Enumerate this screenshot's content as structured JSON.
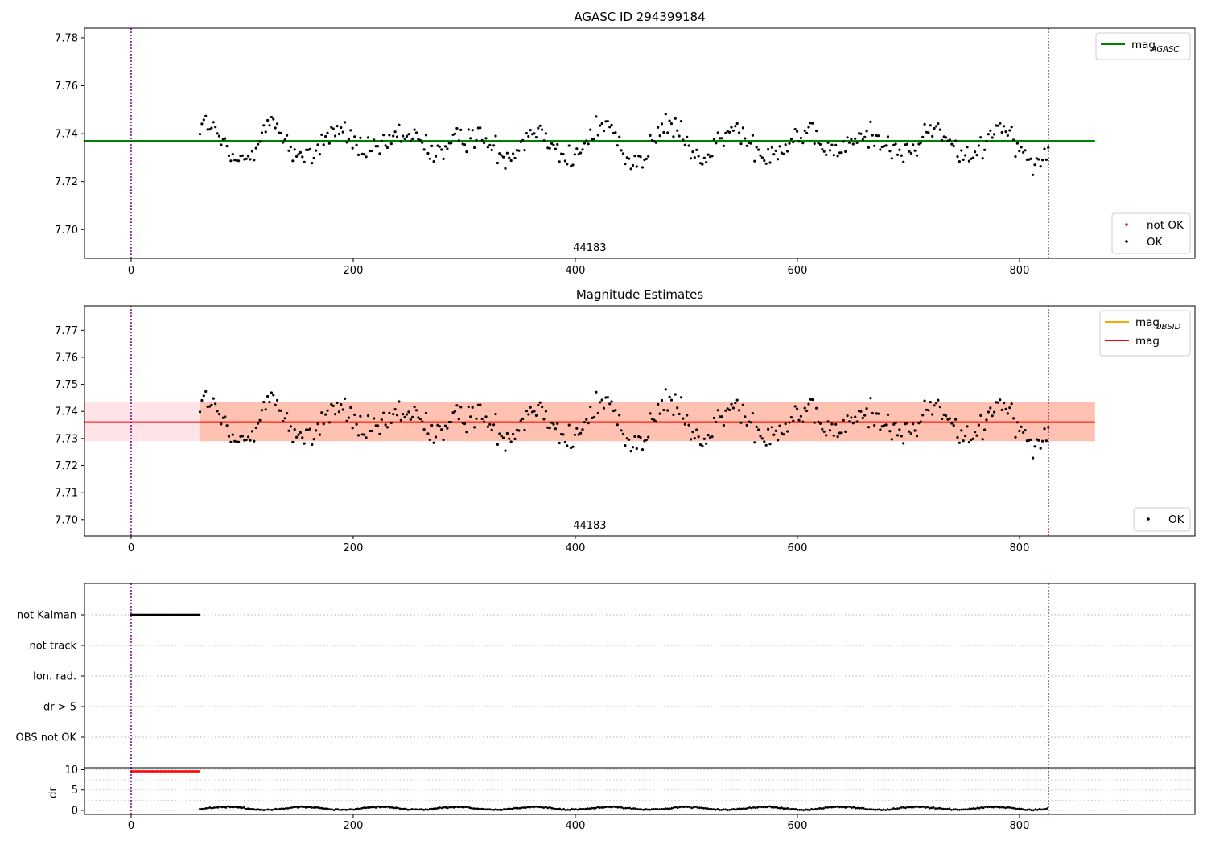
{
  "chart_data": [
    {
      "type": "scatter",
      "title": "AGASC ID 294399184",
      "xlim": [
        -42,
        958
      ],
      "ylim": [
        7.688,
        7.784
      ],
      "x_ticks": [
        0,
        200,
        400,
        600,
        800
      ],
      "y_ticks": [
        7.7,
        7.72,
        7.74,
        7.76,
        7.78
      ],
      "y_tick_labels": [
        "7.70",
        "7.72",
        "7.74",
        "7.76",
        "7.78"
      ],
      "vlines": [
        0,
        826
      ],
      "annotation": "44183",
      "lines": [
        {
          "name": "mag_AGASC",
          "label_main": "mag",
          "label_sub": "AGASC",
          "y": 7.737,
          "x_range": [
            -42,
            868
          ],
          "color": "#008000"
        }
      ],
      "series": [
        {
          "name": "not OK",
          "color": "#ff0000",
          "points": []
        },
        {
          "name": "OK",
          "color": "#000000",
          "x_range": [
            62,
            826
          ],
          "count": 440,
          "mean": 7.736,
          "amplitude": 0.008,
          "noise": 0.0045,
          "min": 7.718,
          "max": 7.755
        }
      ],
      "legend": {
        "upper_right": [
          "mag_AGASC"
        ],
        "lower_right": [
          "not OK",
          "OK"
        ]
      }
    },
    {
      "type": "scatter",
      "title": "Magnitude Estimates",
      "xlim": [
        -42,
        958
      ],
      "ylim": [
        7.694,
        7.779
      ],
      "x_ticks": [
        0,
        200,
        400,
        600,
        800
      ],
      "y_ticks": [
        7.7,
        7.71,
        7.72,
        7.73,
        7.74,
        7.75,
        7.76,
        7.77
      ],
      "y_tick_labels": [
        "7.70",
        "7.71",
        "7.72",
        "7.73",
        "7.74",
        "7.75",
        "7.76",
        "7.77"
      ],
      "vlines": [
        0,
        826
      ],
      "annotation": "44183",
      "lines": [
        {
          "name": "mag_OBSID",
          "label_main": "mag",
          "label_sub": "OBSID",
          "y": 7.736,
          "x_range": [
            62,
            826
          ],
          "color": "#ffa500"
        },
        {
          "name": "mag",
          "label_main": "mag",
          "label_sub": "",
          "y": 7.736,
          "x_range": [
            -42,
            868
          ],
          "color": "#ff0000"
        }
      ],
      "bands": [
        {
          "x_range": [
            -42,
            868
          ],
          "y_range": [
            7.729,
            7.7435
          ],
          "color": "#ffc0cb"
        },
        {
          "x_range": [
            62,
            868
          ],
          "y_range": [
            7.729,
            7.7435
          ],
          "color": "#ffa07a"
        }
      ],
      "series": [
        {
          "name": "OK",
          "color": "#000000",
          "x_range": [
            62,
            826
          ],
          "count": 440,
          "mean": 7.736,
          "amplitude": 0.008,
          "noise": 0.0045,
          "min": 7.718,
          "max": 7.755
        }
      ],
      "legend": {
        "upper_right": [
          "mag_OBSID",
          "mag"
        ],
        "lower_right": [
          "OK"
        ]
      }
    },
    {
      "type": "scatter",
      "title": "",
      "xlim": [
        -42,
        958
      ],
      "categories": [
        "not Kalman",
        "not track",
        "Ion. rad.",
        "dr > 5",
        "OBS not OK"
      ],
      "vlines": [
        0,
        826
      ],
      "flags": [
        {
          "category": "not Kalman",
          "x_range": [
            0,
            62
          ],
          "color": "#000000"
        }
      ]
    },
    {
      "type": "scatter",
      "title": "",
      "xlim": [
        -42,
        958
      ],
      "ylim": [
        -1,
        10.5
      ],
      "x_ticks": [
        0,
        200,
        400,
        600,
        800
      ],
      "y_ticks": [
        0,
        5,
        10
      ],
      "y_tick_labels": [
        "0",
        "5",
        "10"
      ],
      "ylabel": "dr",
      "vlines": [
        0,
        826
      ],
      "series": [
        {
          "name": "dr (not Kalman)",
          "color": "#ff0000",
          "x_range": [
            0,
            62
          ],
          "y": 9.6
        },
        {
          "name": "dr",
          "color": "#000000",
          "x_range": [
            62,
            826
          ],
          "y_mean": 0.5,
          "y_amplitude": 0.35
        }
      ]
    }
  ]
}
